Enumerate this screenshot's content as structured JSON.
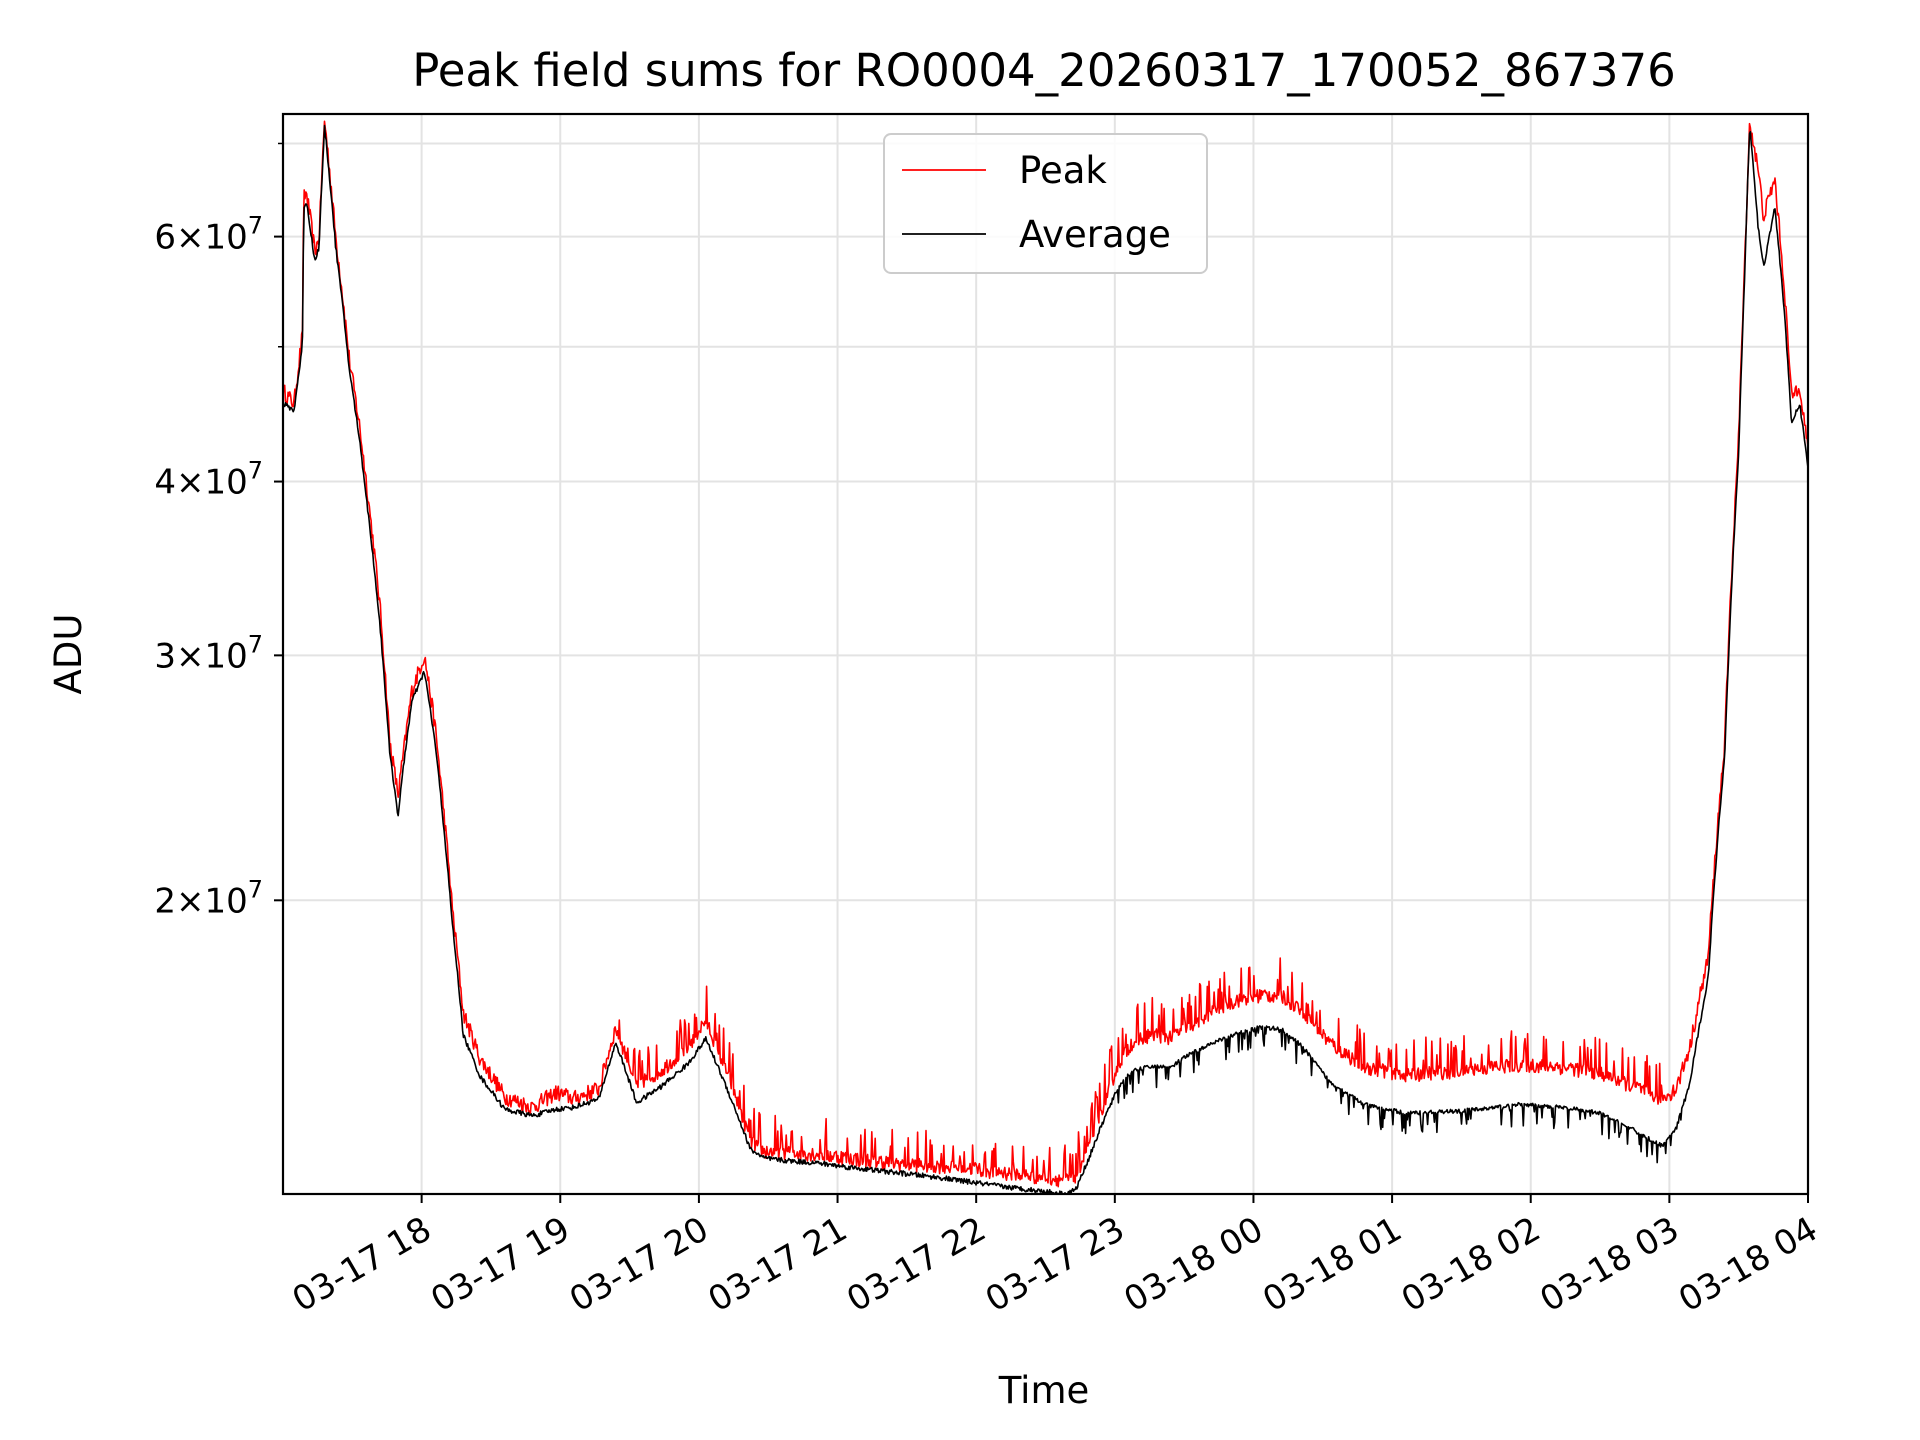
{
  "chart_data": {
    "type": "line",
    "title": "Peak field sums for RO0004_20260317_170052_867376",
    "xlabel": "Time",
    "ylabel": "ADU",
    "yscale": "log",
    "ylim": [
      12300000,
      73500000
    ],
    "xlim_hours": [
      17.0,
      28.0
    ],
    "grid": true,
    "legend_loc": "upper center",
    "x_ticks": [
      {
        "hour": 18,
        "label": "03-17 18"
      },
      {
        "hour": 19,
        "label": "03-17 19"
      },
      {
        "hour": 20,
        "label": "03-17 20"
      },
      {
        "hour": 21,
        "label": "03-17 21"
      },
      {
        "hour": 22,
        "label": "03-17 22"
      },
      {
        "hour": 23,
        "label": "03-17 23"
      },
      {
        "hour": 24,
        "label": "03-18 00"
      },
      {
        "hour": 25,
        "label": "03-18 01"
      },
      {
        "hour": 26,
        "label": "03-18 02"
      },
      {
        "hour": 27,
        "label": "03-18 03"
      },
      {
        "hour": 28,
        "label": "03-18 04"
      }
    ],
    "y_ticks": [
      {
        "value": 20000000,
        "mant": "2",
        "exp": "7"
      },
      {
        "value": 30000000,
        "mant": "3",
        "exp": "7"
      },
      {
        "value": 40000000,
        "mant": "4",
        "exp": "7"
      },
      {
        "value": 60000000,
        "mant": "6",
        "exp": "7"
      }
    ],
    "y_minor_ticks": [
      50000000,
      70000000
    ],
    "series": [
      {
        "name": "Peak",
        "color": "#ff0000",
        "noise_amp": 0.045,
        "x": [
          17.0,
          17.08,
          17.14,
          17.15,
          17.17,
          17.23,
          17.26,
          17.3,
          17.38,
          17.48,
          17.55,
          17.62,
          17.7,
          17.77,
          17.83,
          17.88,
          17.93,
          18.02,
          18.1,
          18.22,
          18.3,
          18.42,
          18.6,
          18.8,
          18.97,
          19.1,
          19.28,
          19.4,
          19.55,
          19.73,
          19.92,
          20.05,
          20.22,
          20.37,
          20.47,
          20.62,
          20.85,
          21.1,
          21.4,
          21.7,
          21.95,
          22.2,
          22.5,
          22.65,
          22.72,
          22.82,
          22.92,
          23.03,
          23.12,
          23.27,
          23.4,
          23.52,
          23.72,
          23.9,
          24.05,
          24.2,
          24.35,
          24.55,
          24.8,
          25.1,
          25.5,
          25.9,
          26.2,
          26.5,
          26.75,
          26.95,
          27.05,
          27.15,
          27.28,
          27.4,
          27.5,
          27.54,
          27.58,
          27.64,
          27.68,
          27.76,
          27.83,
          27.88,
          27.94,
          28.0
        ],
        "y": [
          46500000,
          45500000,
          51000000,
          64000000,
          64500000,
          58500000,
          59800000,
          72800000,
          60000000,
          48800000,
          44000000,
          38500000,
          32500000,
          26000000,
          23800000,
          26000000,
          28300000,
          30000000,
          26500000,
          19800000,
          16600000,
          15400000,
          14450000,
          14200000,
          14550000,
          14400000,
          14650000,
          16200000,
          14750000,
          15100000,
          15700000,
          16400000,
          14900000,
          13450000,
          13200000,
          13200000,
          13150000,
          13050000,
          12950000,
          12900000,
          12850000,
          12750000,
          12650000,
          12600000,
          12700000,
          13400000,
          14300000,
          15300000,
          15800000,
          16050000,
          15950000,
          16200000,
          16700000,
          17000000,
          17100000,
          17100000,
          16700000,
          15800000,
          15200000,
          15000000,
          15100000,
          15250000,
          15200000,
          15050000,
          14700000,
          14400000,
          14650000,
          15700000,
          18200000,
          26000000,
          43000000,
          56000000,
          72500000,
          67000000,
          62000000,
          66000000,
          55000000,
          46000000,
          47000000,
          42000000
        ]
      },
      {
        "name": "Average",
        "color": "#000000",
        "noise_amp": 0.014,
        "x": [
          17.0,
          17.08,
          17.14,
          17.15,
          17.17,
          17.23,
          17.26,
          17.3,
          17.38,
          17.48,
          17.55,
          17.62,
          17.7,
          17.77,
          17.83,
          17.88,
          17.93,
          18.02,
          18.1,
          18.22,
          18.3,
          18.42,
          18.6,
          18.8,
          18.97,
          19.1,
          19.28,
          19.4,
          19.55,
          19.73,
          19.92,
          20.05,
          20.22,
          20.37,
          20.47,
          20.62,
          20.85,
          21.1,
          21.4,
          21.7,
          21.95,
          22.2,
          22.5,
          22.65,
          22.72,
          22.82,
          22.92,
          23.03,
          23.12,
          23.27,
          23.4,
          23.52,
          23.72,
          23.9,
          24.05,
          24.2,
          24.35,
          24.55,
          24.8,
          25.1,
          25.5,
          25.9,
          26.2,
          26.5,
          26.75,
          26.95,
          27.05,
          27.15,
          27.28,
          27.4,
          27.5,
          27.54,
          27.58,
          27.64,
          27.68,
          27.76,
          27.83,
          27.88,
          27.94,
          28.0
        ],
        "y": [
          45500000,
          45000000,
          50000000,
          63000000,
          63500000,
          57500000,
          59000000,
          72000000,
          59000000,
          48000000,
          43000000,
          37500000,
          31500000,
          25500000,
          23000000,
          25500000,
          27800000,
          29200000,
          25800000,
          19300000,
          16000000,
          14950000,
          14150000,
          14000000,
          14150000,
          14200000,
          14400000,
          15800000,
          14300000,
          14700000,
          15250000,
          15900000,
          14500000,
          13250000,
          13050000,
          13000000,
          12950000,
          12850000,
          12750000,
          12650000,
          12550000,
          12450000,
          12350000,
          12300000,
          12400000,
          13100000,
          13900000,
          14700000,
          15050000,
          15200000,
          15150000,
          15450000,
          15800000,
          16050000,
          16200000,
          16150000,
          15700000,
          14800000,
          14250000,
          14050000,
          14100000,
          14250000,
          14200000,
          14050000,
          13650000,
          13300000,
          13700000,
          14800000,
          17600000,
          25500000,
          42000000,
          55000000,
          72000000,
          61000000,
          57000000,
          63000000,
          53000000,
          44000000,
          45500000,
          41000000
        ]
      }
    ]
  }
}
